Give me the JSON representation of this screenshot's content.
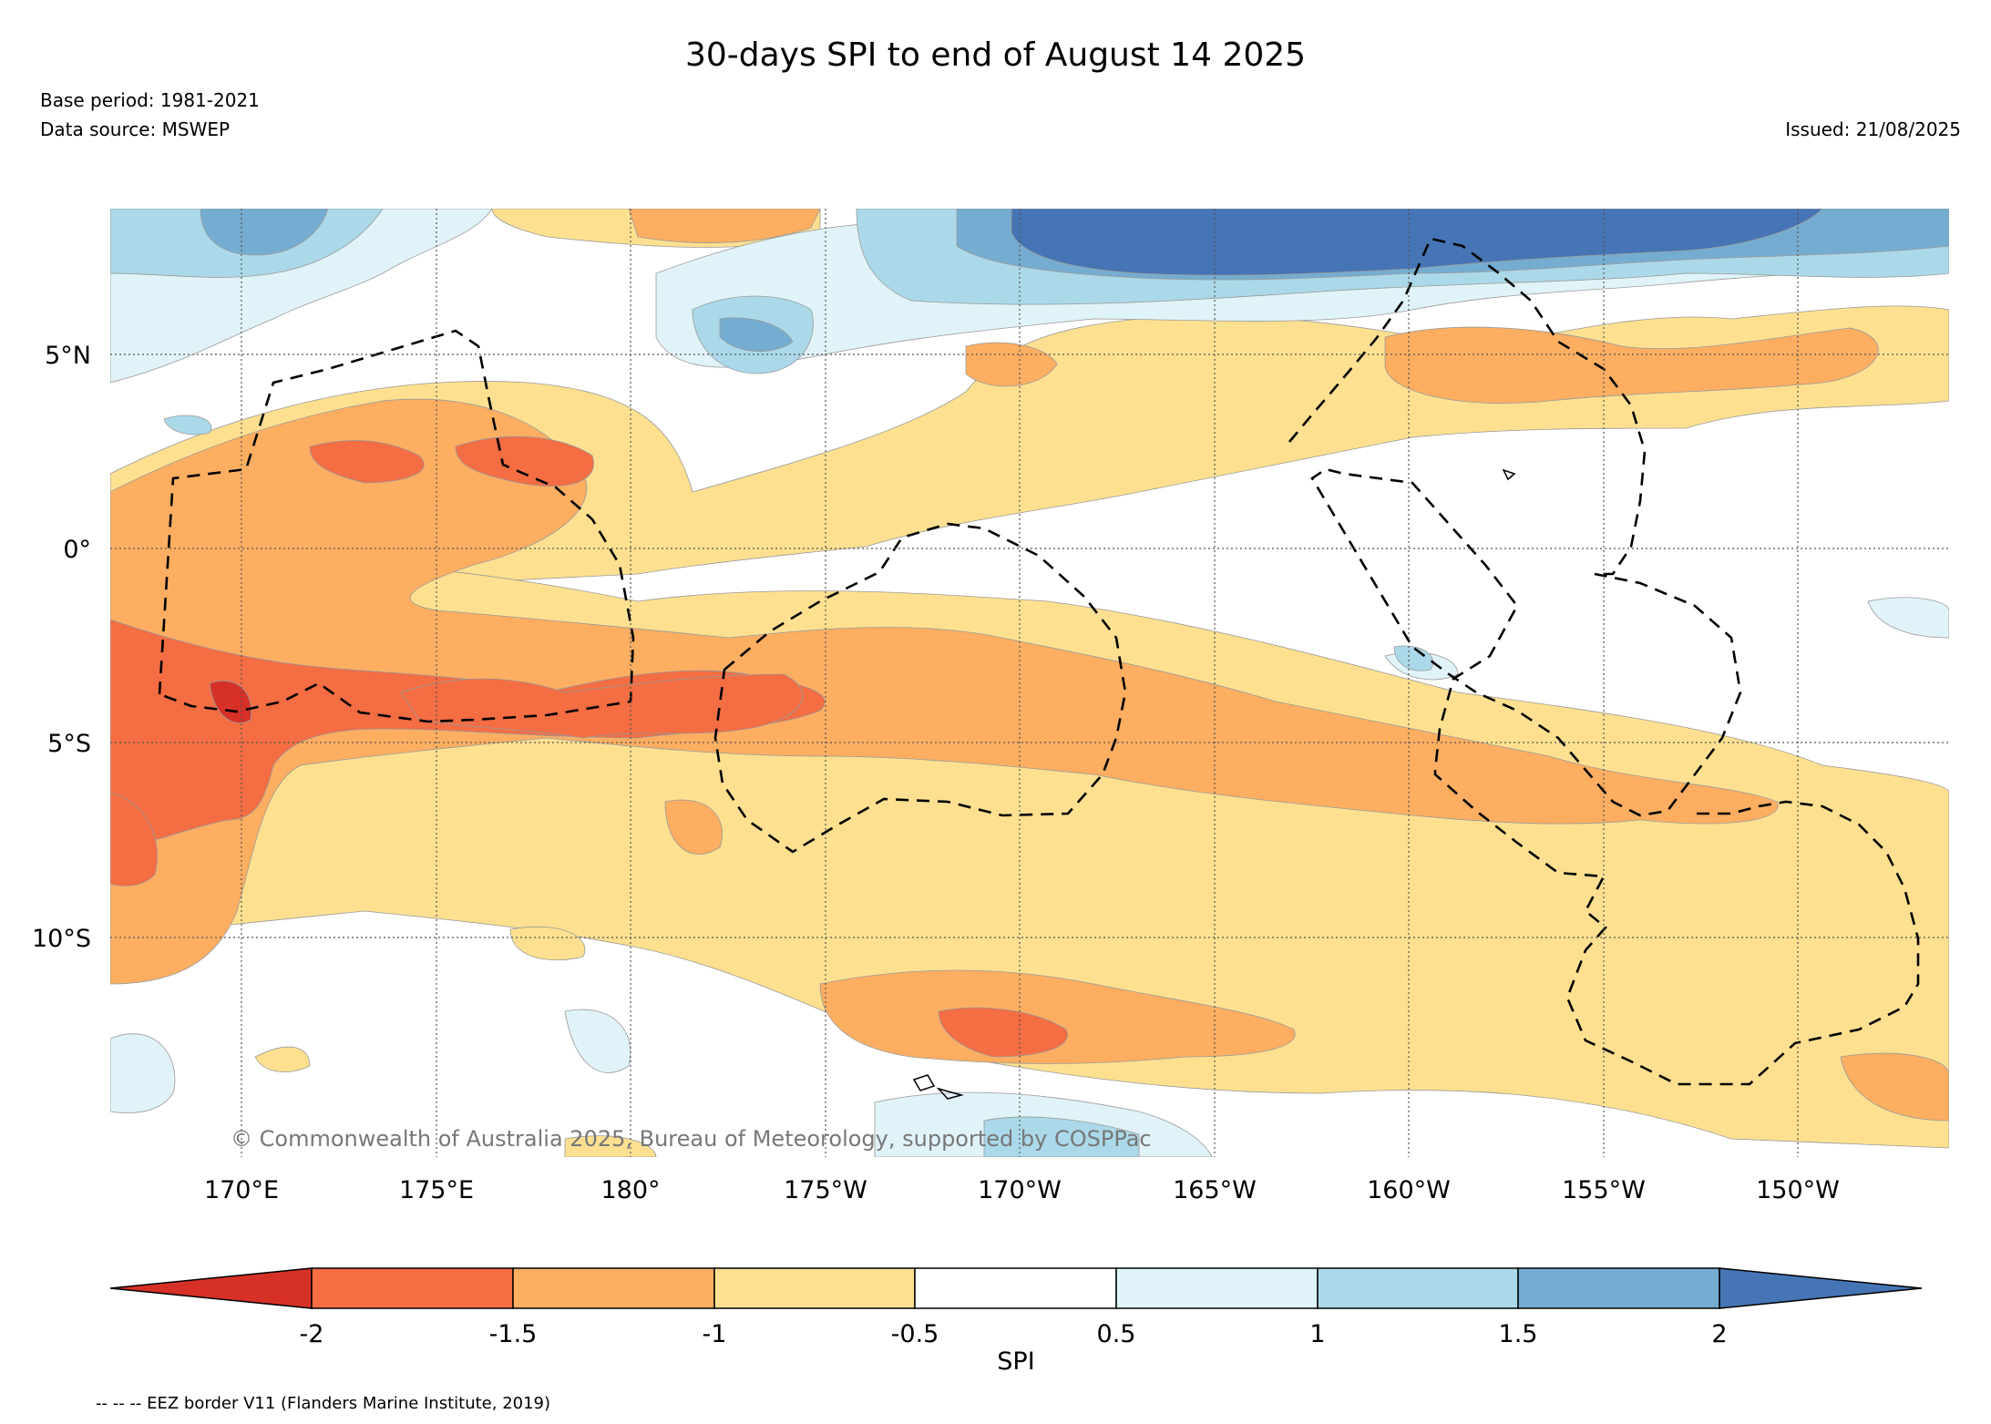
{
  "header": {
    "title": "30-days SPI to end of August 14 2025",
    "base_period": "Base period: 1981-2021",
    "data_source": "Data source: MSWEP",
    "issued": "Issued: 21/08/2025"
  },
  "map": {
    "copyright": "© Commonwealth of Australia 2025, Bureau of Meteorology, supported by COSPPac",
    "lat_labels": [
      "5°N",
      "0°",
      "5°S",
      "10°S"
    ],
    "lon_labels": [
      "170°E",
      "175°E",
      "180°",
      "175°W",
      "170°W",
      "165°W",
      "160°W",
      "155°W",
      "150°W"
    ],
    "grid": "dotted"
  },
  "colorbar": {
    "label": "SPI",
    "tick_labels": [
      "-2",
      "-1.5",
      "-1",
      "-0.5",
      "0.5",
      "1",
      "1.5",
      "2"
    ],
    "colors": [
      "#d73027",
      "#f46d43",
      "#fdae61",
      "#fee090",
      "#ffffff",
      "#e0f3f8",
      "#abd9e9",
      "#74add1",
      "#4575b4"
    ]
  },
  "footer": {
    "legend_note": "-- -- -- EEZ border V11 (Flanders Marine Institute, 2019)"
  }
}
